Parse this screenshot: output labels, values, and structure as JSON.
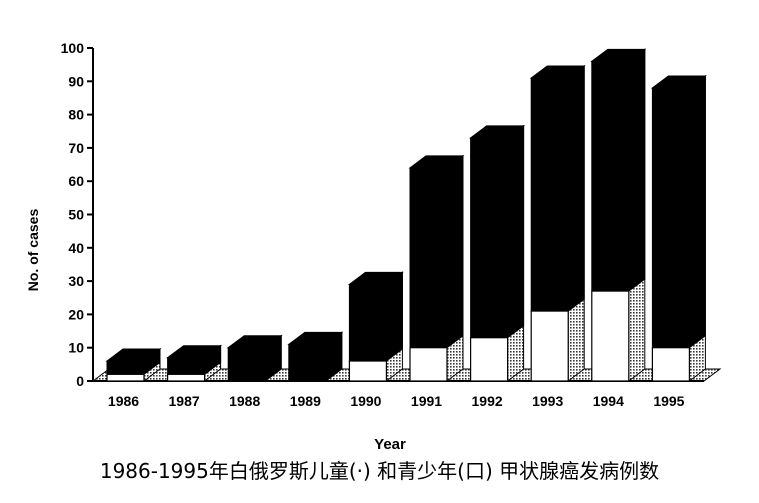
{
  "caption": "1986-1995年白俄罗斯儿童(·) 和青少年(口) 甲状腺癌发病例数",
  "chart_data": {
    "type": "bar",
    "stacking": "stacked",
    "style": "3d",
    "categories": [
      "1986",
      "1987",
      "1988",
      "1989",
      "1990",
      "1991",
      "1992",
      "1993",
      "1994",
      "1995"
    ],
    "series": [
      {
        "values": [
          2,
          2,
          0,
          0,
          6,
          10,
          13,
          21,
          27,
          10
        ],
        "color": "#ffffff"
      },
      {
        "values": [
          4,
          5,
          10,
          11,
          23,
          54,
          60,
          70,
          69,
          78
        ],
        "color": "#000000"
      }
    ],
    "totals": [
      6,
      7,
      10,
      11,
      29,
      64,
      73,
      91,
      96,
      88
    ],
    "xlabel": "Year",
    "ylabel": "No. of cases",
    "ylim": [
      0,
      100
    ],
    "yticks": [
      0,
      10,
      20,
      30,
      40,
      50,
      60,
      70,
      80,
      90,
      100
    ],
    "grid": false,
    "legend": "none"
  }
}
